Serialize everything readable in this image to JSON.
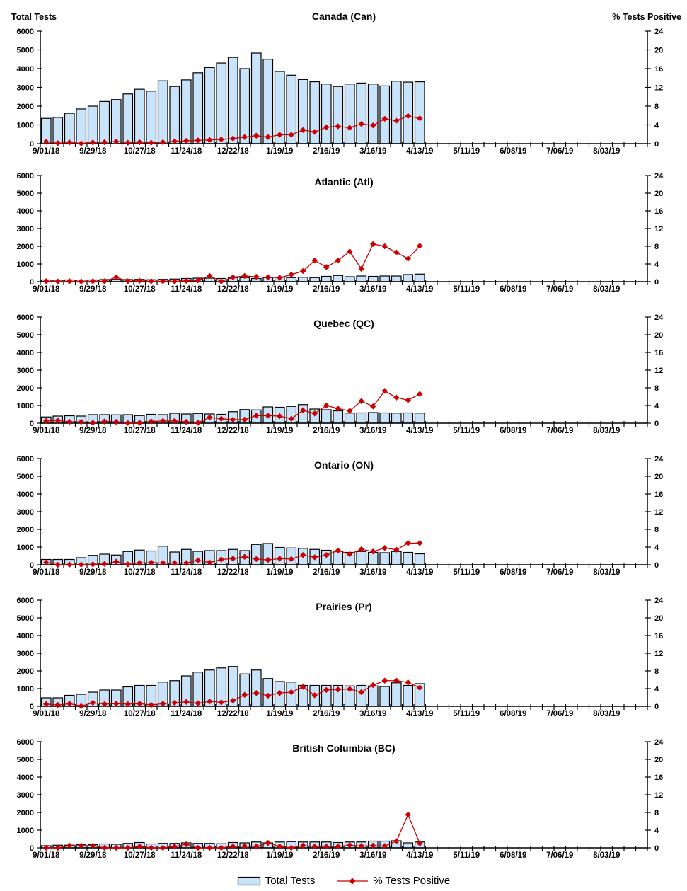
{
  "figure": {
    "left_axis_title": "Total Tests",
    "right_axis_title": "% Tests Positive"
  },
  "legend": {
    "bar_label": "Total Tests",
    "line_label": "% Tests Positive"
  },
  "colors": {
    "bar_fill": "#C9E3FA",
    "bar_stroke": "#000000",
    "line": "#CC0000",
    "axis": "#000000"
  },
  "x_axis": {
    "tick_labels": [
      "9/01/18",
      "9/29/18",
      "10/27/18",
      "11/24/18",
      "12/22/18",
      "1/19/19",
      "2/16/19",
      "3/16/19",
      "4/13/19",
      "5/11/19",
      "6/08/19",
      "7/06/19",
      "8/03/19"
    ],
    "label_every_n_weeks": 4,
    "weeks_total": 52
  },
  "chart_data": [
    {
      "type": "bar",
      "title": "Canada (Can)",
      "left_axis": {
        "min": 0,
        "max": 6000,
        "step": 1000
      },
      "right_axis": {
        "min": 0,
        "max": 24,
        "step": 4
      },
      "series": [
        {
          "name": "Total Tests",
          "type": "bar",
          "axis": "left",
          "values": [
            1350,
            1400,
            1620,
            1850,
            2000,
            2250,
            2350,
            2650,
            2900,
            2800,
            3350,
            3050,
            3400,
            3780,
            4060,
            4300,
            4600,
            4000,
            4830,
            4500,
            3850,
            3650,
            3420,
            3300,
            3180,
            3050,
            3180,
            3230,
            3180,
            3080,
            3330,
            3280,
            3300
          ]
        },
        {
          "name": "% Tests Positive",
          "type": "line",
          "axis": "right",
          "values": [
            0.4,
            0.1,
            0.25,
            0.05,
            0.25,
            0.3,
            0.45,
            0.2,
            0.3,
            0.2,
            0.3,
            0.5,
            0.6,
            0.7,
            0.8,
            0.9,
            1.1,
            1.4,
            1.7,
            1.4,
            1.9,
            1.9,
            2.9,
            2.5,
            3.5,
            3.7,
            3.4,
            4.2,
            3.9,
            5.3,
            4.9,
            5.9,
            5.4
          ]
        }
      ]
    },
    {
      "type": "bar",
      "title": "Atlantic (Atl)",
      "left_axis": {
        "min": 0,
        "max": 6000,
        "step": 1000
      },
      "right_axis": {
        "min": 0,
        "max": 24,
        "step": 4
      },
      "series": [
        {
          "name": "Total Tests",
          "type": "bar",
          "axis": "left",
          "values": [
            100,
            90,
            100,
            95,
            100,
            120,
            130,
            120,
            130,
            110,
            130,
            150,
            180,
            200,
            200,
            180,
            230,
            230,
            180,
            230,
            250,
            230,
            250,
            230,
            300,
            350,
            280,
            320,
            300,
            320,
            320,
            400,
            430
          ]
        },
        {
          "name": "% Tests Positive",
          "type": "line",
          "axis": "right",
          "values": [
            0.1,
            0.05,
            0.1,
            0.05,
            0.1,
            0.1,
            1.0,
            0.1,
            0.2,
            0.1,
            0.1,
            0.05,
            0.2,
            0.3,
            1.3,
            0.05,
            1.0,
            1.3,
            1.1,
            1.0,
            0.9,
            1.6,
            2.4,
            4.8,
            3.3,
            4.8,
            6.8,
            2.9,
            8.5,
            8.0,
            6.6,
            5.2,
            8.1
          ]
        }
      ]
    },
    {
      "type": "bar",
      "title": "Quebec (QC)",
      "left_axis": {
        "min": 0,
        "max": 6000,
        "step": 1000
      },
      "right_axis": {
        "min": 0,
        "max": 24,
        "step": 4
      },
      "series": [
        {
          "name": "Total Tests",
          "type": "bar",
          "axis": "left",
          "values": [
            350,
            400,
            420,
            400,
            480,
            480,
            470,
            480,
            430,
            500,
            480,
            560,
            520,
            550,
            520,
            500,
            650,
            770,
            750,
            920,
            900,
            950,
            1050,
            800,
            760,
            700,
            570,
            580,
            600,
            580,
            570,
            580,
            570
          ]
        },
        {
          "name": "% Tests Positive",
          "type": "line",
          "axis": "right",
          "values": [
            0.5,
            0.6,
            0.3,
            0.3,
            0.1,
            0.4,
            0.3,
            0.05,
            0.1,
            0.4,
            0.5,
            0.5,
            0.3,
            0.1,
            1.3,
            1.0,
            0.8,
            0.8,
            1.7,
            1.7,
            1.6,
            1.0,
            2.9,
            2.2,
            4.0,
            3.3,
            2.8,
            5.0,
            3.8,
            7.3,
            5.8,
            5.2,
            6.6
          ]
        }
      ]
    },
    {
      "type": "bar",
      "title": "Ontario (ON)",
      "left_axis": {
        "min": 0,
        "max": 6000,
        "step": 1000
      },
      "right_axis": {
        "min": 0,
        "max": 24,
        "step": 4
      },
      "series": [
        {
          "name": "Total Tests",
          "type": "bar",
          "axis": "left",
          "values": [
            300,
            300,
            300,
            400,
            530,
            600,
            550,
            750,
            830,
            780,
            1050,
            720,
            870,
            760,
            800,
            800,
            870,
            800,
            1150,
            1200,
            980,
            950,
            930,
            870,
            820,
            780,
            700,
            750,
            700,
            680,
            750,
            700,
            620
          ]
        },
        {
          "name": "% Tests Positive",
          "type": "line",
          "axis": "right",
          "values": [
            0.5,
            0.0,
            0.05,
            0.05,
            0.1,
            0.2,
            0.7,
            0.1,
            0.4,
            0.5,
            0.4,
            0.4,
            0.4,
            1.0,
            0.5,
            1.2,
            1.4,
            1.8,
            1.3,
            1.1,
            1.4,
            1.3,
            2.2,
            1.7,
            2.2,
            3.2,
            2.4,
            3.5,
            3.0,
            3.8,
            3.4,
            4.9,
            4.9
          ]
        }
      ]
    },
    {
      "type": "bar",
      "title": "Prairies (Pr)",
      "left_axis": {
        "min": 0,
        "max": 6000,
        "step": 1000
      },
      "right_axis": {
        "min": 0,
        "max": 24,
        "step": 4
      },
      "series": [
        {
          "name": "Total Tests",
          "type": "bar",
          "axis": "left",
          "values": [
            480,
            480,
            620,
            680,
            800,
            920,
            920,
            1100,
            1180,
            1180,
            1370,
            1450,
            1720,
            1930,
            2050,
            2170,
            2250,
            1830,
            2050,
            1570,
            1400,
            1370,
            1180,
            1180,
            1180,
            1180,
            1150,
            1180,
            1150,
            1120,
            1330,
            1180,
            1280
          ]
        },
        {
          "name": "% Tests Positive",
          "type": "line",
          "axis": "right",
          "values": [
            0.5,
            0.3,
            0.6,
            0.05,
            0.8,
            0.5,
            0.6,
            0.5,
            0.6,
            0.3,
            0.6,
            0.8,
            1.0,
            0.7,
            1.1,
            0.9,
            1.3,
            2.6,
            3.0,
            2.4,
            3.0,
            3.2,
            4.4,
            2.5,
            3.7,
            3.8,
            3.9,
            3.2,
            4.8,
            5.8,
            5.8,
            5.4,
            4.2
          ]
        }
      ]
    },
    {
      "type": "bar",
      "title": "British Columbia (BC)",
      "left_axis": {
        "min": 0,
        "max": 6000,
        "step": 1000
      },
      "right_axis": {
        "min": 0,
        "max": 24,
        "step": 4
      },
      "series": [
        {
          "name": "Total Tests",
          "type": "bar",
          "axis": "left",
          "values": [
            120,
            150,
            150,
            180,
            180,
            220,
            200,
            250,
            300,
            220,
            250,
            250,
            280,
            250,
            250,
            230,
            300,
            280,
            330,
            280,
            330,
            350,
            330,
            330,
            330,
            300,
            330,
            330,
            380,
            380,
            400,
            280,
            330
          ]
        },
        {
          "name": "% Tests Positive",
          "type": "line",
          "axis": "right",
          "values": [
            0.0,
            0.0,
            0.5,
            0.5,
            0.5,
            0.0,
            0.0,
            0.0,
            0.3,
            0.0,
            0.0,
            0.3,
            0.8,
            0.0,
            0.0,
            0.0,
            0.3,
            0.4,
            0.3,
            1.1,
            0.3,
            0.0,
            0.5,
            0.3,
            0.3,
            0.3,
            0.6,
            0.4,
            0.5,
            0.4,
            1.5,
            7.5,
            1.0
          ]
        }
      ]
    }
  ]
}
